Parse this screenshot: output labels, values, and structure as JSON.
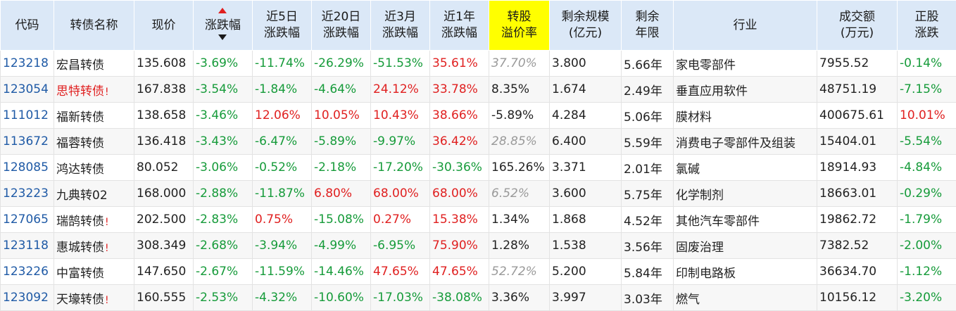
{
  "headers": [
    {
      "l1": "代码"
    },
    {
      "l1": "转债名称"
    },
    {
      "l1": "现价"
    },
    {
      "l1": "涨跌幅",
      "sorted": true
    },
    {
      "l1": "近5日",
      "l2": "涨跌幅"
    },
    {
      "l1": "近20日",
      "l2": "涨跌幅"
    },
    {
      "l1": "近3月",
      "l2": "涨跌幅"
    },
    {
      "l1": "近1年",
      "l2": "涨跌幅"
    },
    {
      "l1": "转股",
      "l2": "溢价率",
      "highlight": true
    },
    {
      "l1": "剩余规模",
      "l2": "(亿元)"
    },
    {
      "l1": "剩余",
      "l2": "年限"
    },
    {
      "l1": "行业"
    },
    {
      "l1": "成交额",
      "l2": "(万元)"
    },
    {
      "l1": "正股",
      "l2": "涨跌"
    }
  ],
  "rows": [
    {
      "code": "123218",
      "name": "宏昌转债",
      "warn": false,
      "price": "135.608",
      "chg": "-3.69%",
      "c5": "11.74%",
      "c5s": "-",
      "c20": "-26.29%",
      "c3m": "-51.53%",
      "c1y": "35.61%",
      "prem": "37.70%",
      "premStyle": "grey",
      "scale": "3.800",
      "years": "5.66年",
      "industry": "家电零部件",
      "amount": "7955.52",
      "stock": "-0.14%"
    },
    {
      "code": "123054",
      "name": "思特转债",
      "warn": true,
      "tag": "!",
      "price": "167.838",
      "chg": "-3.54%",
      "c5": "1.84%",
      "c5s": "-",
      "c20": "-4.64%",
      "c3m": "24.12%",
      "c1y": "33.78%",
      "prem": "8.35%",
      "premStyle": "neu",
      "scale": "1.674",
      "years": "2.49年",
      "industry": "垂直应用软件",
      "amount": "48751.19",
      "stock": "-7.15%"
    },
    {
      "code": "111012",
      "name": "福新转债",
      "warn": false,
      "price": "138.658",
      "chg": "-3.46%",
      "c5": "12.06%",
      "c5s": "+",
      "c20": "10.05%",
      "c3m": "10.43%",
      "c1y": "38.66%",
      "prem": "-5.89%",
      "premStyle": "neu",
      "scale": "4.284",
      "years": "5.06年",
      "industry": "膜材料",
      "amount": "400675.61",
      "stock": "10.01%"
    },
    {
      "code": "113672",
      "name": "福蓉转债",
      "warn": false,
      "price": "136.418",
      "chg": "-3.43%",
      "c5": "6.47%",
      "c5s": "-",
      "c20": "-5.89%",
      "c3m": "-9.97%",
      "c1y": "36.42%",
      "prem": "28.85%",
      "premStyle": "grey",
      "scale": "6.400",
      "years": "5.59年",
      "industry": "消费电子零部件及组装",
      "amount": "15404.01",
      "stock": "-5.54%"
    },
    {
      "code": "128085",
      "name": "鸿达转债",
      "warn": false,
      "price": "80.052",
      "chg": "-3.06%",
      "c5": "0.52%",
      "c5s": "-",
      "c20": "-2.18%",
      "c3m": "-17.20%",
      "c1y": "-30.36%",
      "prem": "165.26%",
      "premStyle": "neu",
      "scale": "3.371",
      "years": "2.01年",
      "industry": "氯碱",
      "amount": "18914.93",
      "stock": "-4.84%"
    },
    {
      "code": "123223",
      "name": "九典转02",
      "warn": false,
      "price": "168.000",
      "chg": "-2.88%",
      "c5": "11.87%",
      "c5s": "-",
      "c20": "6.80%",
      "c3m": "68.00%",
      "c1y": "68.00%",
      "prem": "6.52%",
      "premStyle": "grey",
      "scale": "3.600",
      "years": "5.75年",
      "industry": "化学制剂",
      "amount": "18663.01",
      "stock": "-0.29%"
    },
    {
      "code": "127065",
      "name": "瑞鹄转债",
      "warn": false,
      "tag": "!",
      "price": "202.500",
      "chg": "-2.83%",
      "c5": "0.75%",
      "c5s": "+",
      "c20": "-15.08%",
      "c3m": "0.27%",
      "c1y": "15.38%",
      "prem": "1.34%",
      "premStyle": "neu",
      "scale": "1.868",
      "years": "4.52年",
      "industry": "其他汽车零部件",
      "amount": "19862.72",
      "stock": "-1.79%"
    },
    {
      "code": "123118",
      "name": "惠城转债",
      "warn": false,
      "tag": "!",
      "price": "308.349",
      "chg": "-2.68%",
      "c5": "3.94%",
      "c5s": "-",
      "c20": "-4.99%",
      "c3m": "-6.95%",
      "c1y": "75.90%",
      "prem": "1.28%",
      "premStyle": "neu",
      "scale": "1.538",
      "years": "3.56年",
      "industry": "固废治理",
      "amount": "7382.52",
      "stock": "-2.00%"
    },
    {
      "code": "123226",
      "name": "中富转债",
      "warn": false,
      "price": "147.650",
      "chg": "-2.67%",
      "c5": "11.59%",
      "c5s": "-",
      "c20": "-14.46%",
      "c3m": "47.65%",
      "c1y": "47.65%",
      "prem": "52.72%",
      "premStyle": "grey",
      "scale": "5.200",
      "years": "5.84年",
      "industry": "印制电路板",
      "amount": "36634.70",
      "stock": "-1.12%"
    },
    {
      "code": "123092",
      "name": "天壕转债",
      "warn": false,
      "tag": "!",
      "price": "160.555",
      "chg": "-2.53%",
      "c5": "4.32%",
      "c5s": "-",
      "c20": "-10.60%",
      "c3m": "-17.03%",
      "c1y": "-38.08%",
      "prem": "3.36%",
      "premStyle": "neu",
      "scale": "3.997",
      "years": "3.03年",
      "industry": "燃气",
      "amount": "10156.12",
      "stock": "-3.20%"
    }
  ]
}
